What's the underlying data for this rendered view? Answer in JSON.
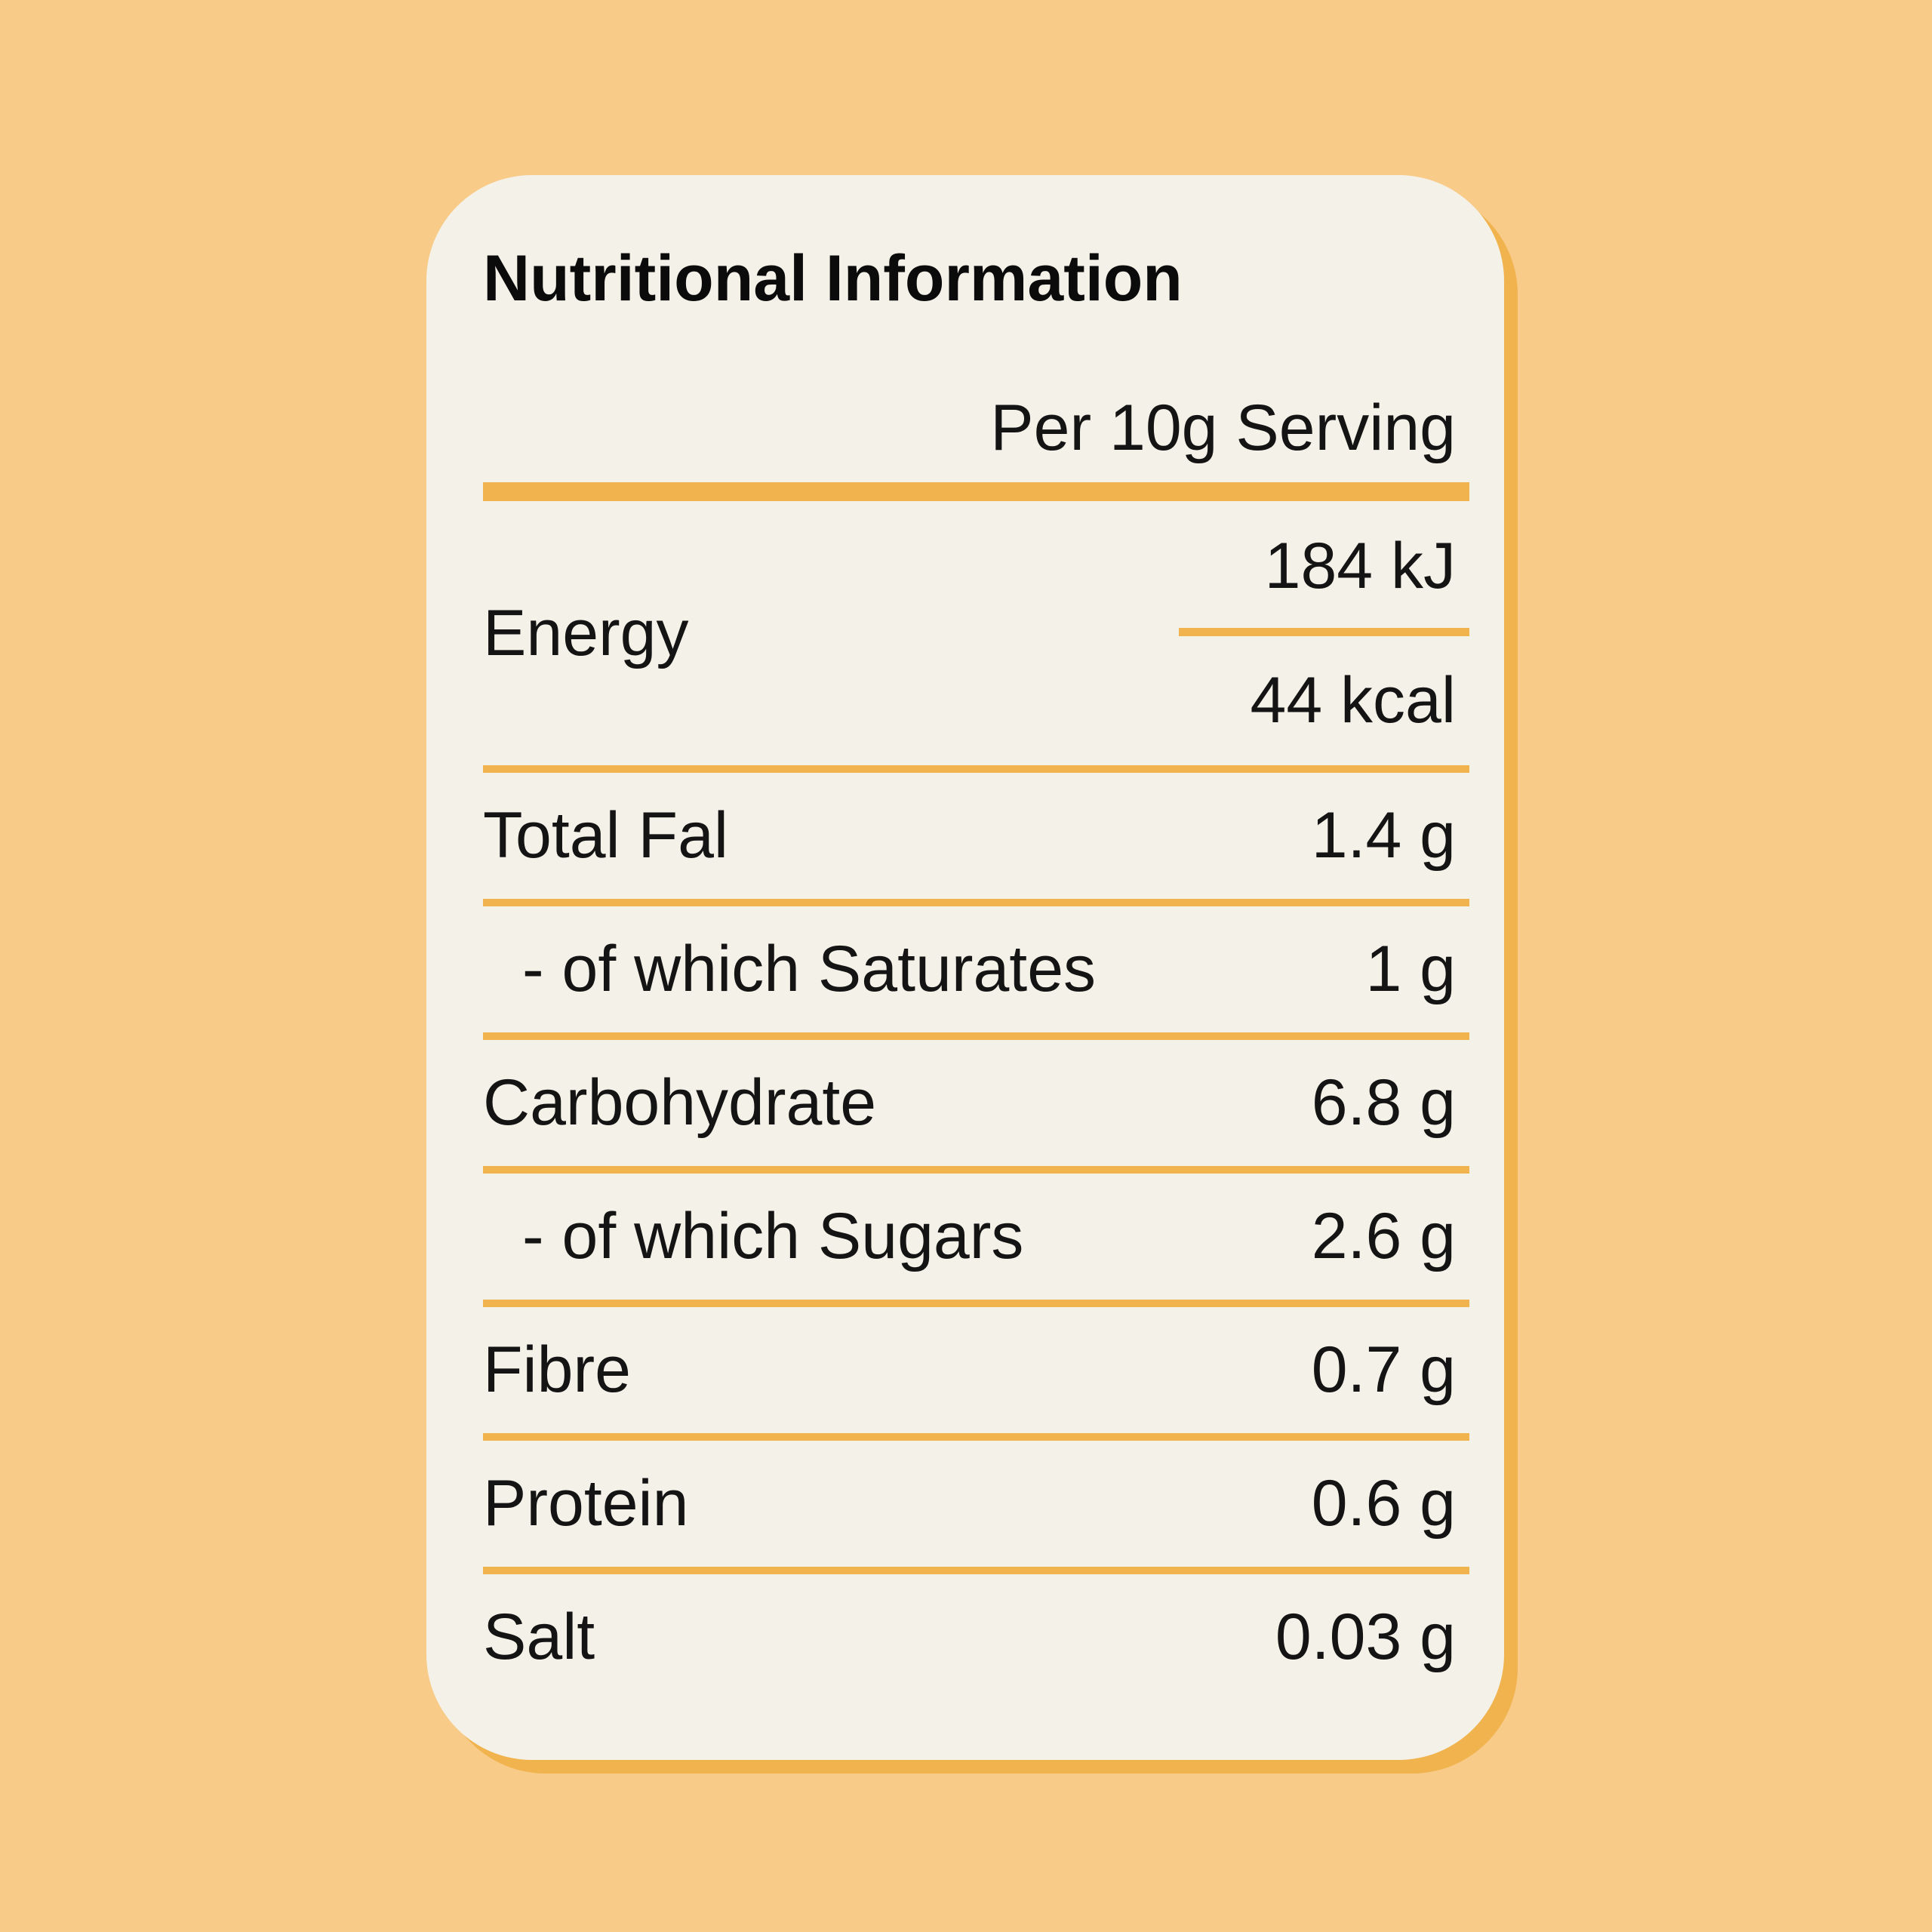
{
  "card": {
    "title": "Nutritional Information",
    "serving_header": "Per 10g Serving"
  },
  "energy": {
    "label": "Energy",
    "kj": "184 kJ",
    "kcal": "44 kcal"
  },
  "rows": [
    {
      "label": "Total Fal",
      "value": "1.4 g",
      "indent": false
    },
    {
      "label": "- of which Saturates",
      "value": "1 g",
      "indent": true
    },
    {
      "label": "Carbohydrate",
      "value": "6.8 g",
      "indent": false
    },
    {
      "label": "- of which Sugars",
      "value": "2.6 g",
      "indent": true
    },
    {
      "label": "Fibre",
      "value": "0.7 g",
      "indent": false
    },
    {
      "label": "Protein",
      "value": "0.6 g",
      "indent": false
    },
    {
      "label": "Salt",
      "value": "0.03 g",
      "indent": false
    }
  ],
  "colors": {
    "background": "#F8CB88",
    "accent": "#F0B34E",
    "card_background": "#F4F1E8",
    "text": "#141414"
  }
}
